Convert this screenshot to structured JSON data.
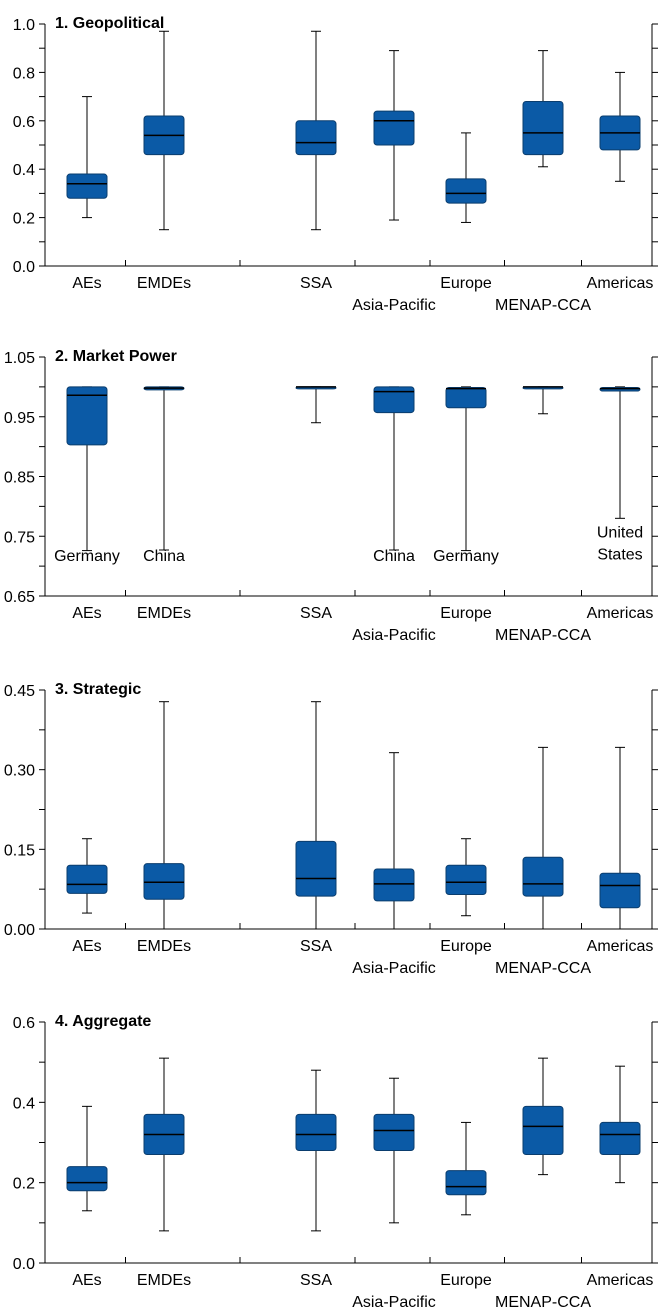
{
  "colors": {
    "box_fill": "#0b5aa6",
    "box_stroke": "#0a3d6e",
    "axis": "#000000"
  },
  "chart_data": [
    {
      "type": "boxplot",
      "title": "1. Geopolitical",
      "ylim": [
        0.0,
        1.0
      ],
      "yticks": [
        {
          "v": 0.0,
          "label": "0.0"
        },
        {
          "v": 0.1,
          "label": ""
        },
        {
          "v": 0.2,
          "label": "0.2"
        },
        {
          "v": 0.3,
          "label": ""
        },
        {
          "v": 0.4,
          "label": "0.4"
        },
        {
          "v": 0.5,
          "label": ""
        },
        {
          "v": 0.6,
          "label": "0.6"
        },
        {
          "v": 0.7,
          "label": ""
        },
        {
          "v": 0.8,
          "label": "0.8"
        },
        {
          "v": 0.9,
          "label": ""
        },
        {
          "v": 1.0,
          "label": "1.0"
        }
      ],
      "categories": [
        "AEs",
        "EMDEs",
        "SSA",
        "Asia-Pacific",
        "Europe",
        "MENAP-CCA",
        "Americas"
      ],
      "boxes": [
        {
          "min": 0.2,
          "q1": 0.28,
          "median": 0.34,
          "q3": 0.38,
          "max": 0.7
        },
        {
          "min": 0.15,
          "q1": 0.46,
          "median": 0.54,
          "q3": 0.62,
          "max": 0.97
        },
        {
          "min": 0.15,
          "q1": 0.46,
          "median": 0.51,
          "q3": 0.6,
          "max": 0.97
        },
        {
          "min": 0.19,
          "q1": 0.5,
          "median": 0.6,
          "q3": 0.64,
          "max": 0.89
        },
        {
          "min": 0.18,
          "q1": 0.26,
          "median": 0.3,
          "q3": 0.36,
          "max": 0.55
        },
        {
          "min": 0.41,
          "q1": 0.46,
          "median": 0.55,
          "q3": 0.68,
          "max": 0.89
        },
        {
          "min": 0.35,
          "q1": 0.48,
          "median": 0.55,
          "q3": 0.62,
          "max": 0.8
        }
      ],
      "annotations": []
    },
    {
      "type": "boxplot",
      "title": "2. Market Power",
      "ylim": [
        0.65,
        1.05
      ],
      "yticks": [
        {
          "v": 0.65,
          "label": "0.65"
        },
        {
          "v": 0.7,
          "label": ""
        },
        {
          "v": 0.75,
          "label": "0.75"
        },
        {
          "v": 0.8,
          "label": ""
        },
        {
          "v": 0.85,
          "label": "0.85"
        },
        {
          "v": 0.9,
          "label": ""
        },
        {
          "v": 0.95,
          "label": "0.95"
        },
        {
          "v": 1.0,
          "label": ""
        },
        {
          "v": 1.05,
          "label": "1.05"
        }
      ],
      "categories": [
        "AEs",
        "EMDEs",
        "SSA",
        "Asia-Pacific",
        "Europe",
        "MENAP-CCA",
        "Americas"
      ],
      "boxes": [
        {
          "min": 0.726,
          "q1": 0.903,
          "median": 0.986,
          "q3": 1.0,
          "max": 1.0
        },
        {
          "min": 0.727,
          "q1": 0.995,
          "median": 0.998,
          "q3": 1.0,
          "max": 1.0
        },
        {
          "min": 0.94,
          "q1": 1.0,
          "median": 1.0,
          "q3": 1.0,
          "max": 1.0
        },
        {
          "min": 0.727,
          "q1": 0.957,
          "median": 0.992,
          "q3": 1.0,
          "max": 1.0
        },
        {
          "min": 0.726,
          "q1": 0.965,
          "median": 0.997,
          "q3": 0.999,
          "max": 1.0
        },
        {
          "min": 0.955,
          "q1": 0.999,
          "median": 1.0,
          "q3": 1.0,
          "max": 1.0
        },
        {
          "min": 0.78,
          "q1": 0.993,
          "median": 0.997,
          "q3": 0.999,
          "max": 1.0
        }
      ],
      "annotations": [
        {
          "index": 0,
          "text": "Germany"
        },
        {
          "index": 1,
          "text": "China"
        },
        {
          "index": 3,
          "text": "China"
        },
        {
          "index": 4,
          "text": "Germany"
        },
        {
          "index": 6,
          "text": "United States"
        }
      ]
    },
    {
      "type": "boxplot",
      "title": "3. Strategic",
      "ylim": [
        0.0,
        0.45
      ],
      "yticks": [
        {
          "v": 0.0,
          "label": "0.00"
        },
        {
          "v": 0.075,
          "label": ""
        },
        {
          "v": 0.15,
          "label": "0.15"
        },
        {
          "v": 0.225,
          "label": ""
        },
        {
          "v": 0.3,
          "label": "0.30"
        },
        {
          "v": 0.375,
          "label": ""
        },
        {
          "v": 0.45,
          "label": "0.45"
        }
      ],
      "categories": [
        "AEs",
        "EMDEs",
        "SSA",
        "Asia-Pacific",
        "Europe",
        "MENAP-CCA",
        "Americas"
      ],
      "boxes": [
        {
          "min": 0.03,
          "q1": 0.067,
          "median": 0.084,
          "q3": 0.12,
          "max": 0.17
        },
        {
          "min": 0.0,
          "q1": 0.056,
          "median": 0.088,
          "q3": 0.123,
          "max": 0.428
        },
        {
          "min": 0.0,
          "q1": 0.062,
          "median": 0.095,
          "q3": 0.165,
          "max": 0.428
        },
        {
          "min": 0.0,
          "q1": 0.053,
          "median": 0.085,
          "q3": 0.113,
          "max": 0.332
        },
        {
          "min": 0.025,
          "q1": 0.065,
          "median": 0.088,
          "q3": 0.12,
          "max": 0.17
        },
        {
          "min": 0.0,
          "q1": 0.062,
          "median": 0.085,
          "q3": 0.135,
          "max": 0.342
        },
        {
          "min": 0.0,
          "q1": 0.04,
          "median": 0.082,
          "q3": 0.105,
          "max": 0.342
        }
      ],
      "annotations": []
    },
    {
      "type": "boxplot",
      "title": "4. Aggregate",
      "ylim": [
        0.0,
        0.6
      ],
      "yticks": [
        {
          "v": 0.0,
          "label": "0.0"
        },
        {
          "v": 0.1,
          "label": ""
        },
        {
          "v": 0.2,
          "label": "0.2"
        },
        {
          "v": 0.3,
          "label": ""
        },
        {
          "v": 0.4,
          "label": "0.4"
        },
        {
          "v": 0.5,
          "label": ""
        },
        {
          "v": 0.6,
          "label": "0.6"
        }
      ],
      "categories": [
        "AEs",
        "EMDEs",
        "SSA",
        "Asia-Pacific",
        "Europe",
        "MENAP-CCA",
        "Americas"
      ],
      "boxes": [
        {
          "min": 0.13,
          "q1": 0.18,
          "median": 0.2,
          "q3": 0.24,
          "max": 0.39
        },
        {
          "min": 0.08,
          "q1": 0.27,
          "median": 0.32,
          "q3": 0.37,
          "max": 0.51
        },
        {
          "min": 0.08,
          "q1": 0.28,
          "median": 0.32,
          "q3": 0.37,
          "max": 0.48
        },
        {
          "min": 0.1,
          "q1": 0.28,
          "median": 0.33,
          "q3": 0.37,
          "max": 0.46
        },
        {
          "min": 0.12,
          "q1": 0.17,
          "median": 0.19,
          "q3": 0.23,
          "max": 0.35
        },
        {
          "min": 0.22,
          "q1": 0.27,
          "median": 0.34,
          "q3": 0.39,
          "max": 0.51
        },
        {
          "min": 0.2,
          "q1": 0.27,
          "median": 0.32,
          "q3": 0.35,
          "max": 0.49
        }
      ],
      "annotations": []
    }
  ]
}
